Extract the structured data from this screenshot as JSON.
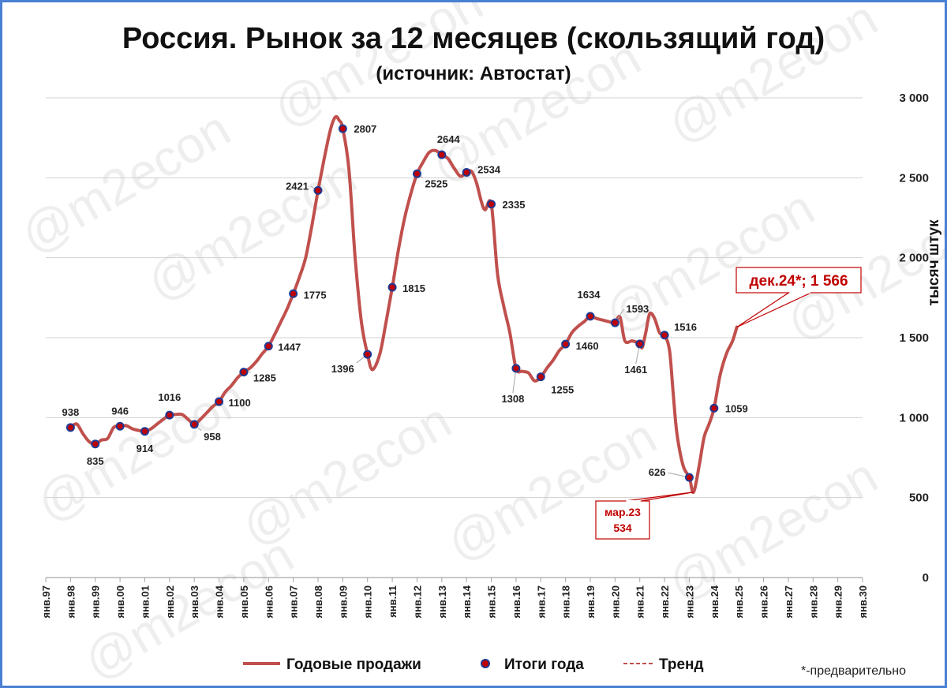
{
  "chart_data": {
    "type": "line",
    "title": "Россия. Рынок за 12 месяцев (скользящий год)",
    "subtitle": "(источник: Автостат)",
    "ylabel": "тысяч штук",
    "ylim": [
      0,
      3000
    ],
    "yticks": [
      0,
      500,
      1000,
      1500,
      2000,
      2500,
      3000
    ],
    "ytick_labels": [
      "0",
      "500",
      "1 000",
      "1 500",
      "2 000",
      "2 500",
      "3 000"
    ],
    "x_tick_labels": [
      "янв.97",
      "янв.98",
      "янв.99",
      "янв.00",
      "янв.01",
      "янв.02",
      "янв.03",
      "янв.04",
      "янв.05",
      "янв.06",
      "янв.07",
      "янв.08",
      "янв.09",
      "янв.10",
      "янв.11",
      "янв.12",
      "янв.13",
      "янв.14",
      "янв.15",
      "янв.16",
      "янв.17",
      "янв.18",
      "янв.19",
      "янв.20",
      "янв.21",
      "янв.22",
      "янв.23",
      "янв.24",
      "янв.25",
      "янв.26",
      "янв.27",
      "янв.28",
      "янв.29",
      "янв.30"
    ],
    "grid": true,
    "legend_position": "bottom",
    "series": [
      {
        "name": "Годовые продажи",
        "color": "#c0504d",
        "points": [
          [
            1998.0,
            938
          ],
          [
            1998.25,
            960
          ],
          [
            1998.5,
            900
          ],
          [
            1998.75,
            850
          ],
          [
            1999.0,
            835
          ],
          [
            1999.25,
            860
          ],
          [
            1999.5,
            870
          ],
          [
            1999.75,
            940
          ],
          [
            2000.0,
            946
          ],
          [
            2000.25,
            950
          ],
          [
            2000.5,
            930
          ],
          [
            2000.75,
            920
          ],
          [
            2001.0,
            914
          ],
          [
            2001.25,
            930
          ],
          [
            2001.5,
            960
          ],
          [
            2001.75,
            990
          ],
          [
            2002.0,
            1016
          ],
          [
            2002.25,
            1020
          ],
          [
            2002.5,
            1020
          ],
          [
            2002.75,
            990
          ],
          [
            2003.0,
            958
          ],
          [
            2003.25,
            990
          ],
          [
            2003.5,
            1030
          ],
          [
            2003.75,
            1070
          ],
          [
            2004.0,
            1100
          ],
          [
            2004.25,
            1160
          ],
          [
            2004.5,
            1200
          ],
          [
            2004.75,
            1250
          ],
          [
            2005.0,
            1285
          ],
          [
            2005.25,
            1310
          ],
          [
            2005.5,
            1350
          ],
          [
            2005.75,
            1400
          ],
          [
            2006.0,
            1447
          ],
          [
            2006.25,
            1520
          ],
          [
            2006.5,
            1600
          ],
          [
            2006.75,
            1680
          ],
          [
            2007.0,
            1775
          ],
          [
            2007.25,
            1880
          ],
          [
            2007.5,
            2000
          ],
          [
            2007.75,
            2200
          ],
          [
            2008.0,
            2421
          ],
          [
            2008.25,
            2620
          ],
          [
            2008.5,
            2800
          ],
          [
            2008.7,
            2880
          ],
          [
            2008.85,
            2860
          ],
          [
            2009.0,
            2807
          ],
          [
            2009.25,
            2550
          ],
          [
            2009.5,
            2000
          ],
          [
            2009.75,
            1600
          ],
          [
            2010.0,
            1396
          ],
          [
            2010.2,
            1300
          ],
          [
            2010.5,
            1400
          ],
          [
            2010.75,
            1600
          ],
          [
            2011.0,
            1815
          ],
          [
            2011.25,
            2050
          ],
          [
            2011.5,
            2250
          ],
          [
            2011.75,
            2400
          ],
          [
            2012.0,
            2525
          ],
          [
            2012.25,
            2600
          ],
          [
            2012.5,
            2660
          ],
          [
            2012.75,
            2670
          ],
          [
            2013.0,
            2644
          ],
          [
            2013.25,
            2620
          ],
          [
            2013.5,
            2560
          ],
          [
            2013.75,
            2510
          ],
          [
            2014.0,
            2534
          ],
          [
            2014.2,
            2540
          ],
          [
            2014.4,
            2470
          ],
          [
            2014.6,
            2350
          ],
          [
            2014.75,
            2300
          ],
          [
            2015.0,
            2335
          ],
          [
            2015.25,
            1900
          ],
          [
            2015.5,
            1700
          ],
          [
            2015.75,
            1530
          ],
          [
            2016.0,
            1308
          ],
          [
            2016.25,
            1290
          ],
          [
            2016.5,
            1280
          ],
          [
            2016.75,
            1230
          ],
          [
            2017.0,
            1255
          ],
          [
            2017.25,
            1310
          ],
          [
            2017.5,
            1360
          ],
          [
            2017.75,
            1420
          ],
          [
            2018.0,
            1460
          ],
          [
            2018.25,
            1530
          ],
          [
            2018.5,
            1570
          ],
          [
            2018.75,
            1600
          ],
          [
            2019.0,
            1634
          ],
          [
            2019.25,
            1620
          ],
          [
            2019.5,
            1610
          ],
          [
            2019.75,
            1600
          ],
          [
            2020.0,
            1593
          ],
          [
            2020.2,
            1630
          ],
          [
            2020.4,
            1480
          ],
          [
            2020.7,
            1480
          ],
          [
            2021.0,
            1461
          ],
          [
            2021.1,
            1440
          ],
          [
            2021.25,
            1540
          ],
          [
            2021.4,
            1650
          ],
          [
            2021.6,
            1620
          ],
          [
            2021.8,
            1530
          ],
          [
            2022.0,
            1516
          ],
          [
            2022.2,
            1420
          ],
          [
            2022.35,
            1150
          ],
          [
            2022.5,
            900
          ],
          [
            2022.75,
            700
          ],
          [
            2023.0,
            626
          ],
          [
            2023.17,
            534
          ],
          [
            2023.4,
            700
          ],
          [
            2023.6,
            880
          ],
          [
            2023.8,
            960
          ],
          [
            2024.0,
            1059
          ],
          [
            2024.25,
            1270
          ],
          [
            2024.5,
            1400
          ],
          [
            2024.75,
            1480
          ],
          [
            2024.92,
            1566
          ]
        ]
      },
      {
        "name": "Итоги года",
        "color": "#c00000",
        "points": [
          [
            1998,
            938
          ],
          [
            1999,
            835
          ],
          [
            2000,
            946
          ],
          [
            2001,
            914
          ],
          [
            2002,
            1016
          ],
          [
            2003,
            958
          ],
          [
            2004,
            1100
          ],
          [
            2005,
            1285
          ],
          [
            2006,
            1447
          ],
          [
            2007,
            1775
          ],
          [
            2008,
            2421
          ],
          [
            2009,
            2807
          ],
          [
            2010,
            1396
          ],
          [
            2011,
            1815
          ],
          [
            2012,
            2525
          ],
          [
            2013,
            2644
          ],
          [
            2014,
            2534
          ],
          [
            2015,
            2335
          ],
          [
            2016,
            1308
          ],
          [
            2017,
            1255
          ],
          [
            2018,
            1460
          ],
          [
            2019,
            1634
          ],
          [
            2020,
            1593
          ],
          [
            2021,
            1461
          ],
          [
            2022,
            1516
          ],
          [
            2023,
            626
          ],
          [
            2024,
            1059
          ]
        ],
        "labels": [
          "938",
          "835",
          "946",
          "914",
          "1016",
          "958",
          "1100",
          "1285",
          "1447",
          "1775",
          "2421",
          "2807",
          "1396",
          "1815",
          "2525",
          "2644",
          "2534",
          "2335",
          "1308",
          "1255",
          "1460",
          "1634",
          "1593",
          "1461",
          "1516",
          "626",
          "1059"
        ]
      },
      {
        "name": "Тренд",
        "color": "#c0504d",
        "points": []
      }
    ],
    "annotations": [
      {
        "text": "дек.24*; 1 566",
        "x": 2024.92,
        "y": 1566
      },
      {
        "text_line1": "мар.23",
        "text_line2": "534",
        "x": 2023.17,
        "y": 534
      }
    ],
    "footnote": "*-предварительно",
    "watermark": "@m2econ"
  }
}
